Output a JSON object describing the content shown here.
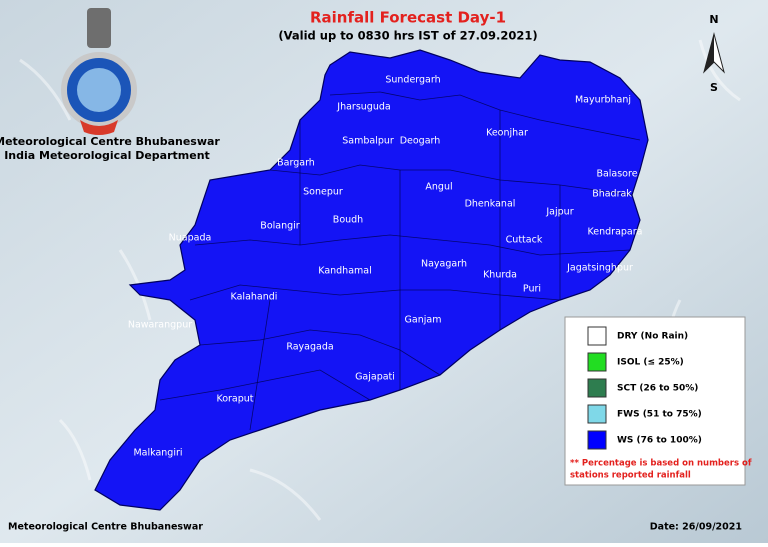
{
  "header": {
    "title": "Rainfall Forecast Day-1",
    "subtitle": "(Valid up to 0830 hrs IST of 27.09.2021)",
    "organization": [
      "Meteorological Centre Bhubaneswar",
      "India Meteorological Department"
    ]
  },
  "compass": {
    "north": "N",
    "south": "S"
  },
  "districts": [
    "Sundergarh",
    "Jharsuguda",
    "Mayurbhanj",
    "Keonjhar",
    "Sambalpur",
    "Deogarh",
    "Balasore",
    "Bargarh",
    "Angul",
    "Sonepur",
    "Bhadrak",
    "Dhenkanal",
    "Jajpur",
    "Bolangir",
    "Boudh",
    "Nuapada",
    "Cuttack",
    "Kendrapara",
    "Kandhamal",
    "Nayagarh",
    "Khurda",
    "Jagatsinghpur",
    "Kalahandi",
    "Puri",
    "Nawarangpur",
    "Ganjam",
    "Rayagada",
    "Gajapati",
    "Koraput",
    "Malkangiri"
  ],
  "legend": {
    "items": [
      {
        "label": "DRY (No Rain)",
        "color": "#ffffff"
      },
      {
        "label": "ISOL (≤ 25%)",
        "color": "#22dd22"
      },
      {
        "label": "SCT (26 to 50%)",
        "color": "#2e7d4f"
      },
      {
        "label": "FWS (51 to 75%)",
        "color": "#7fd8e8"
      },
      {
        "label": "WS (76 to 100%)",
        "color": "#0000ff"
      }
    ],
    "note": [
      "** Percentage is based on numbers of",
      "stations reported rainfall"
    ]
  },
  "footer": {
    "left": "Meteorological Centre Bhubaneswar",
    "right": "Date: 26/09/2021"
  }
}
